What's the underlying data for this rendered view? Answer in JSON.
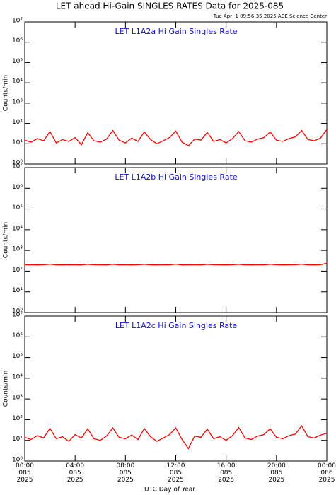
{
  "title": "LET ahead Hi-Gain SINGLES RATES Data for 2025-085",
  "subtitle": "Tue Apr  1 09:56:35 2025 ACE Science Center",
  "xlabel": "UTC Day of Year",
  "chart_data": [
    {
      "type": "line",
      "title": "LET L1A2a Hi Gain Singles Rate",
      "ylabel": "Counts/min",
      "yscale": "log",
      "ylim": [
        1,
        10000000
      ],
      "yticks": [
        {
          "value": 1,
          "label": "10⁰"
        },
        {
          "value": 10,
          "label": "10¹"
        },
        {
          "value": 100,
          "label": "10²"
        },
        {
          "value": 1000,
          "label": "10³"
        },
        {
          "value": 10000,
          "label": "10⁴"
        },
        {
          "value": 100000,
          "label": "10⁵"
        },
        {
          "value": 1000000,
          "label": "10⁶"
        },
        {
          "value": 10000000,
          "label": "10⁷"
        }
      ],
      "xlim": [
        0,
        24
      ],
      "x": [
        0,
        0.5,
        1,
        1.5,
        2,
        2.5,
        3,
        3.5,
        4,
        4.5,
        5,
        5.5,
        6,
        6.5,
        7,
        7.5,
        8,
        8.5,
        9,
        9.5,
        10,
        10.5,
        11,
        11.5,
        12,
        12.5,
        13,
        13.5,
        14,
        14.5,
        15,
        15.5,
        16,
        16.5,
        17,
        17.5,
        18,
        18.5,
        19,
        19.5,
        20,
        20.5,
        21,
        21.5,
        22,
        22.5,
        23,
        23.5,
        24
      ],
      "series": [
        {
          "color": "#ff0000",
          "values": [
            15,
            12,
            18,
            14,
            40,
            11,
            16,
            13,
            20,
            9,
            35,
            14,
            12,
            17,
            45,
            15,
            11,
            19,
            13,
            38,
            16,
            10,
            14,
            20,
            42,
            12,
            8,
            17,
            15,
            36,
            13,
            16,
            11,
            18,
            40,
            14,
            12,
            17,
            20,
            38,
            15,
            13,
            18,
            22,
            45,
            16,
            14,
            19,
            50
          ]
        }
      ]
    },
    {
      "type": "line",
      "title": "LET L1A2b Hi Gain Singles Rate",
      "ylabel": "Counts/min",
      "yscale": "log",
      "ylim": [
        1,
        10000000
      ],
      "yticks": [
        {
          "value": 1,
          "label": "10⁰"
        },
        {
          "value": 10,
          "label": "10¹"
        },
        {
          "value": 100,
          "label": "10²"
        },
        {
          "value": 1000,
          "label": "10³"
        },
        {
          "value": 10000,
          "label": "10⁴"
        },
        {
          "value": 100000,
          "label": "10⁵"
        },
        {
          "value": 1000000,
          "label": "10⁶"
        },
        {
          "value": 10000000,
          "label": "10⁷"
        }
      ],
      "xlim": [
        0,
        24
      ],
      "x": [
        0,
        0.5,
        1,
        1.5,
        2,
        2.5,
        3,
        3.5,
        4,
        4.5,
        5,
        5.5,
        6,
        6.5,
        7,
        7.5,
        8,
        8.5,
        9,
        9.5,
        10,
        10.5,
        11,
        11.5,
        12,
        12.5,
        13,
        13.5,
        14,
        14.5,
        15,
        15.5,
        16,
        16.5,
        17,
        17.5,
        18,
        18.5,
        19,
        19.5,
        20,
        20.5,
        21,
        21.5,
        22,
        22.5,
        23,
        23.5,
        24
      ],
      "series": [
        {
          "color": "#ff0000",
          "values": [
            200,
            202,
            199,
            201,
            215,
            200,
            198,
            202,
            200,
            199,
            212,
            201,
            200,
            198,
            214,
            200,
            202,
            199,
            201,
            213,
            200,
            199,
            201,
            200,
            215,
            198,
            200,
            202,
            199,
            212,
            201,
            200,
            199,
            201,
            214,
            200,
            198,
            202,
            200,
            213,
            201,
            199,
            200,
            202,
            215,
            200,
            199,
            201,
            240
          ]
        }
      ]
    },
    {
      "type": "line",
      "title": "LET L1A2c Hi Gain Singles Rate",
      "ylabel": "Counts/min",
      "yscale": "log",
      "ylim": [
        1,
        10000000
      ],
      "yticks": [
        {
          "value": 1,
          "label": "10⁰"
        },
        {
          "value": 10,
          "label": "10¹"
        },
        {
          "value": 100,
          "label": "10²"
        },
        {
          "value": 1000,
          "label": "10³"
        },
        {
          "value": 10000,
          "label": "10⁴"
        },
        {
          "value": 100000,
          "label": "10⁵"
        },
        {
          "value": 1000000,
          "label": "10⁶"
        },
        {
          "value": 10000000,
          "label": "10⁷"
        }
      ],
      "xlim": [
        0,
        24
      ],
      "xticks": [
        {
          "value": 0,
          "label": "00:00\n085\n2025"
        },
        {
          "value": 4,
          "label": "04:00\n085\n2025"
        },
        {
          "value": 8,
          "label": "08:00\n085\n2025"
        },
        {
          "value": 12,
          "label": "12:00\n085\n2025"
        },
        {
          "value": 16,
          "label": "16:00\n085\n2025"
        },
        {
          "value": 20,
          "label": "20:00\n085\n2025"
        },
        {
          "value": 24,
          "label": "00:00\n086\n2025"
        }
      ],
      "x": [
        0,
        0.5,
        1,
        1.5,
        2,
        2.5,
        3,
        3.5,
        4,
        4.5,
        5,
        5.5,
        6,
        6.5,
        7,
        7.5,
        8,
        8.5,
        9,
        9.5,
        10,
        10.5,
        11,
        11.5,
        12,
        12.5,
        13,
        13.5,
        14,
        14.5,
        15,
        15.5,
        16,
        16.5,
        17,
        17.5,
        18,
        18.5,
        19,
        19.5,
        20,
        20.5,
        21,
        21.5,
        22,
        22.5,
        23,
        23.5,
        24
      ],
      "series": [
        {
          "color": "#ff0000",
          "values": [
            14,
            11,
            17,
            13,
            38,
            12,
            15,
            9,
            19,
            13,
            36,
            12,
            10,
            16,
            40,
            14,
            12,
            18,
            11,
            37,
            15,
            9,
            13,
            19,
            40,
            11,
            4,
            16,
            14,
            35,
            12,
            15,
            10,
            17,
            42,
            13,
            11,
            16,
            19,
            36,
            14,
            12,
            17,
            20,
            50,
            15,
            13,
            18,
            22
          ]
        }
      ]
    }
  ]
}
